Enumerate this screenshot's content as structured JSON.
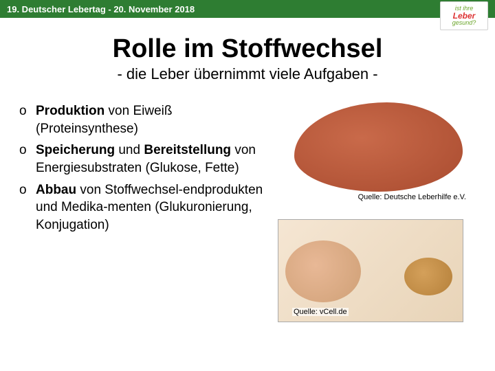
{
  "header": {
    "text": "19. Deutscher Lebertag - 20. November 2018"
  },
  "logo": {
    "line1": "ist ihre",
    "line2": "Leber",
    "line3": "gesund?"
  },
  "title": "Rolle im Stoffwechsel",
  "subtitle": "- die Leber übernimmt viele Aufgaben -",
  "bullets": {
    "b1bold": "Produktion",
    "b1rest": " von Eiweiß (Proteinsynthese)",
    "b2bold": "Speicherung",
    "b2mid": " und ",
    "b2bold2": "Bereitstellung",
    "b2rest": " von Energiesubstraten (Glukose, Fette)",
    "b3bold": "Abbau",
    "b3rest": " von Stoffwechsel-endprodukten und Medika-menten (Glukuronierung, Konjugation)"
  },
  "captions": {
    "liver": "Quelle: Deutsche Leberhilfe e.V.",
    "cell": "Quelle: vCell.de"
  }
}
